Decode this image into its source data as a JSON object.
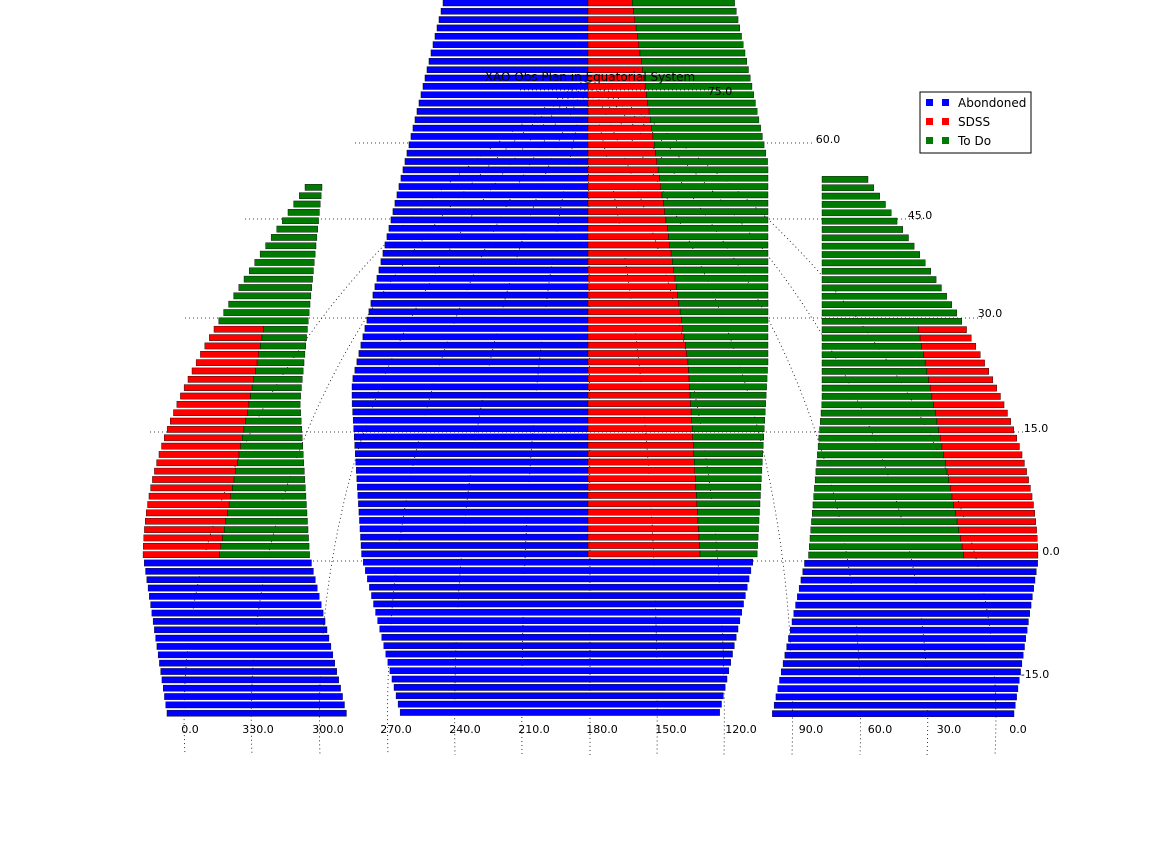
{
  "chart_data": {
    "type": "scatter",
    "projection": "hammer-like equatorial (RA vs Dec)",
    "title": "XAO Obs Plan in Equatorial System",
    "ra_tick_labels": [
      "0.0",
      "330.0",
      "300.0",
      "270.0",
      "240.0",
      "210.0",
      "180.0",
      "150.0",
      "120.0",
      "90.0",
      "60.0",
      "30.0",
      "0.0"
    ],
    "dec_tick_labels": [
      "75.0",
      "60.0",
      "45.0",
      "30.0",
      "15.0",
      "0.0",
      "-15.0"
    ],
    "dec_range": [
      -20,
      80
    ],
    "legend_placement": "top-right",
    "grid": true,
    "series": [
      {
        "name": "Abondoned",
        "color": "#0000ff"
      },
      {
        "name": "SDSS",
        "color": "#ff0000"
      },
      {
        "name": "To Do",
        "color": "#007a00"
      }
    ]
  },
  "legend": {
    "items": [
      {
        "label": "Abondoned",
        "color": "#0000ff"
      },
      {
        "label": "SDSS",
        "color": "#ff0000"
      },
      {
        "label": "To Do",
        "color": "#007a00"
      }
    ]
  }
}
